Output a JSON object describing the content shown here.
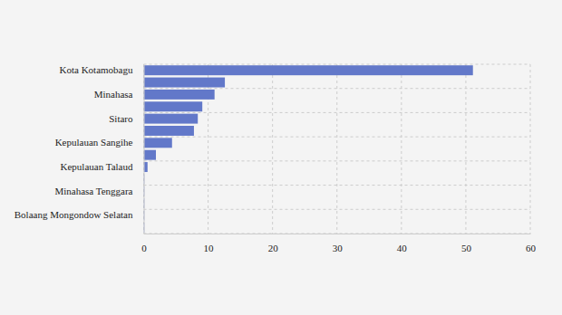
{
  "chart_data": {
    "type": "bar",
    "orientation": "horizontal",
    "categories": [
      "Kota Kotamobagu",
      null,
      "Minahasa",
      null,
      "Sitaro",
      null,
      "Kepulauan Sangihe",
      null,
      "Kepulauan Talaud",
      null,
      "Minahasa Tenggara",
      null,
      "Bolaang Mongondow Selatan",
      null
    ],
    "values": [
      51.1,
      12.6,
      11.0,
      9.1,
      8.4,
      7.8,
      4.4,
      1.9,
      0.6,
      0.1,
      0.1,
      0.1,
      0.1,
      0.1
    ],
    "color": "#6278c9",
    "xlim": [
      0,
      60
    ],
    "xticks": [
      0,
      10,
      20,
      30,
      40,
      50,
      60
    ],
    "grid": true
  }
}
